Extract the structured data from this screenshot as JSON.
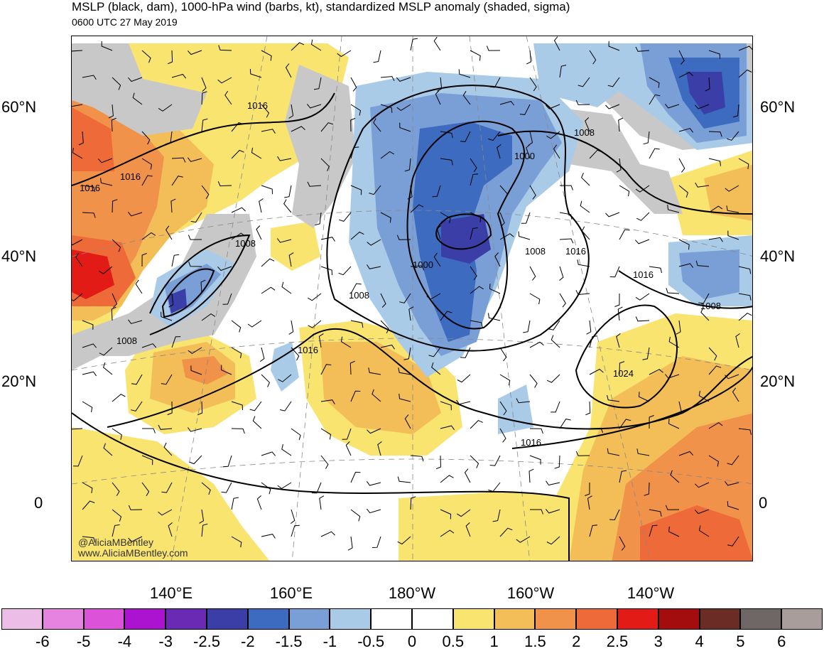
{
  "title": "MSLP (black, dam), 1000-hPa wind (barbs, kt), standardized MSLP anomaly (shaded, sigma)",
  "subtitle": "0600 UTC 27 May 2019",
  "watermark": {
    "handle": "@AliciaMBentley",
    "site": "www.AliciaMBentley.com"
  },
  "latitude_labels": [
    "60°N",
    "40°N",
    "20°N",
    "0"
  ],
  "longitude_labels": [
    "140°E",
    "160°E",
    "180°W",
    "160°W",
    "140°W"
  ],
  "isobar_labels": [
    "1016",
    "1016",
    "1016",
    "1008",
    "1008",
    "1008",
    "1000",
    "1000",
    "1008",
    "1016",
    "1016",
    "1008",
    "1008",
    "1016",
    "1024",
    "1016"
  ],
  "colorbar": {
    "labels": [
      "-6",
      "-5",
      "-4",
      "-3",
      "-2.5",
      "-2",
      "-1.5",
      "-1",
      "-0.5",
      "0",
      "0.5",
      "1",
      "1.5",
      "2",
      "2.5",
      "3",
      "4",
      "5",
      "6"
    ],
    "colors": [
      "#ebbde7",
      "#e683e0",
      "#dc52d8",
      "#ac13d0",
      "#6b2ab4",
      "#3b3ea6",
      "#3d6bbf",
      "#7a9fd6",
      "#a9cbe8",
      "#ffffff",
      "#ffffff",
      "#f9e470",
      "#f3be58",
      "#f0924a",
      "#ee6a38",
      "#e31b17",
      "#a40d0d",
      "#6b2c26",
      "#6f6766",
      "#a89d9b"
    ]
  },
  "colors": {
    "gray_zone": "#c8c8c8",
    "land_outline": "#6a6a6a",
    "isobar": "#000000"
  }
}
